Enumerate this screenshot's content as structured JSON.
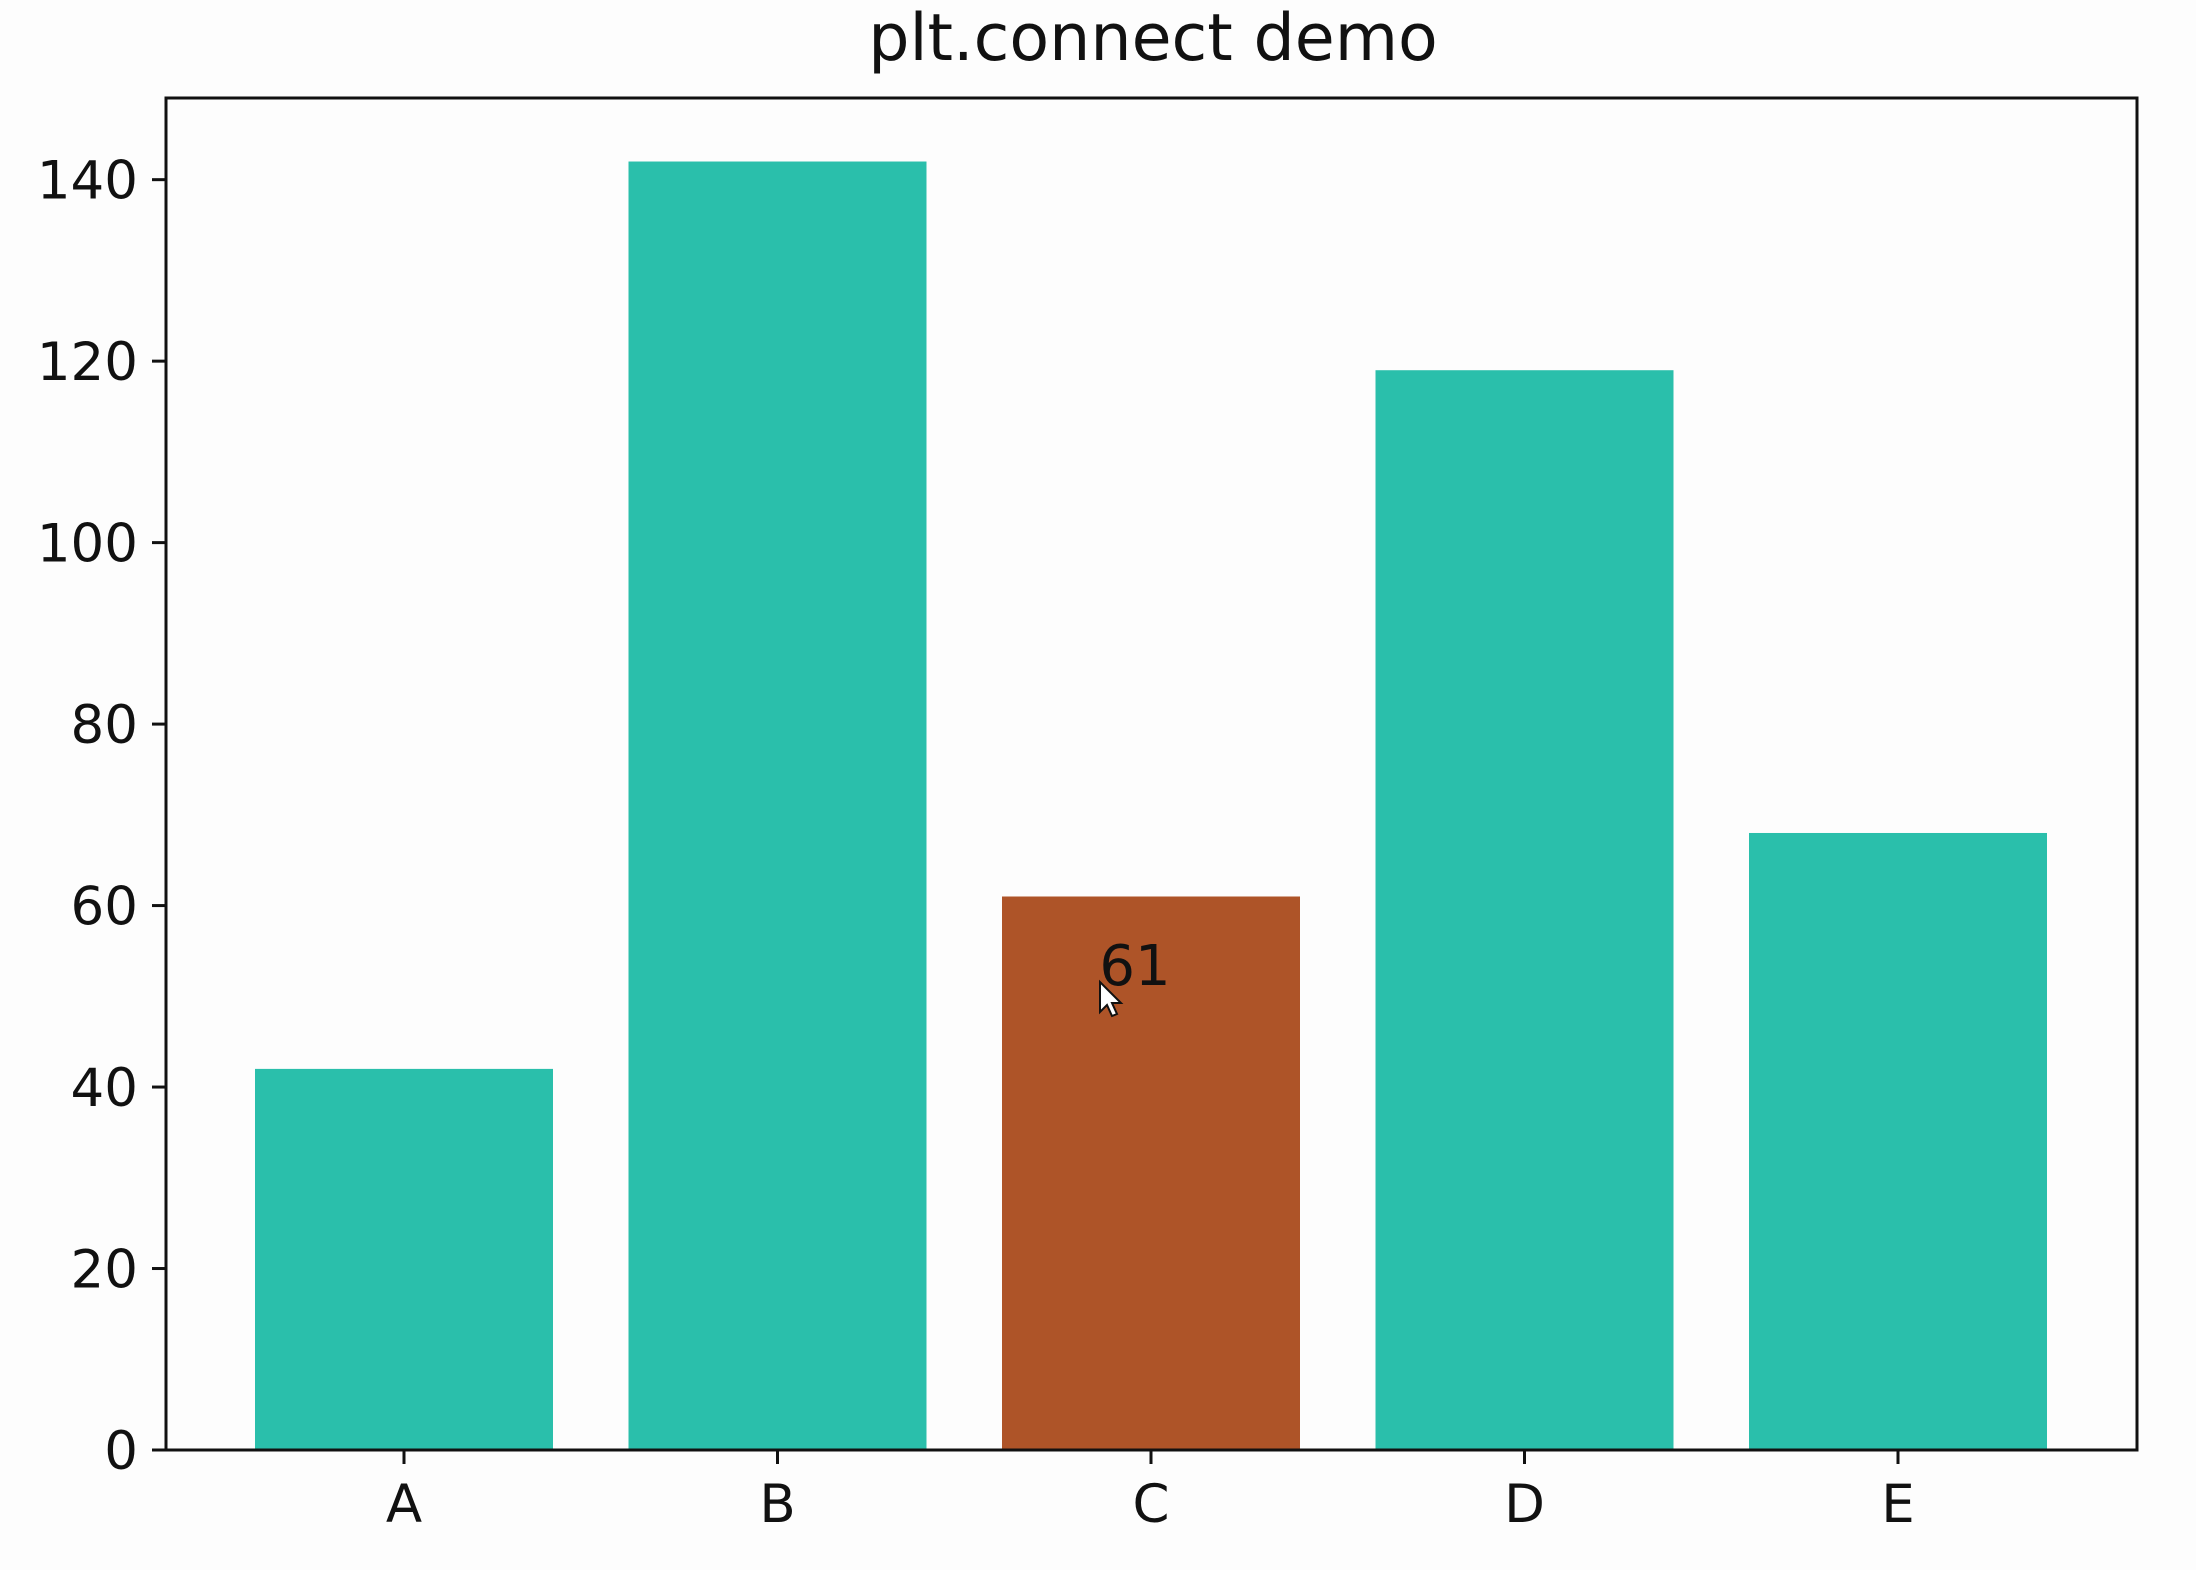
{
  "chart_data": {
    "type": "bar",
    "title": "plt.connect demo",
    "categories": [
      "A",
      "B",
      "C",
      "D",
      "E"
    ],
    "values": [
      42,
      142,
      61,
      119,
      68
    ],
    "ylim": [
      0,
      149
    ],
    "yticks": [
      0,
      20,
      40,
      60,
      80,
      100,
      120,
      140
    ],
    "grid": false,
    "highlighted_index": 2,
    "annotation": "61",
    "colors": {
      "bar": "#2abfab",
      "highlight": "#ae5428",
      "axis": "#111111",
      "background": "#fdfdfd"
    },
    "cursor_icon": "mouse-pointer-icon"
  }
}
